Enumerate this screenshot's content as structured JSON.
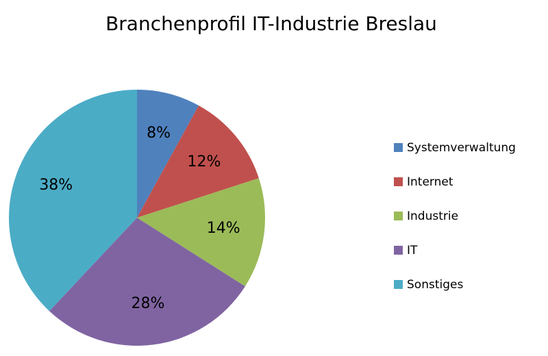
{
  "chart_data": {
    "type": "pie",
    "title": "Branchenprofil IT-Industrie Breslau",
    "categories": [
      "Systemverwaltung",
      "Internet",
      "Industrie",
      "IT",
      "Sonstiges"
    ],
    "values": [
      8,
      12,
      14,
      28,
      38
    ],
    "value_labels": [
      "8%",
      "12%",
      "14%",
      "28%",
      "38%"
    ],
    "colors": [
      "#4f81bd",
      "#c0504d",
      "#9bbb59",
      "#8064a2",
      "#4bacc6"
    ],
    "legend": "right"
  }
}
